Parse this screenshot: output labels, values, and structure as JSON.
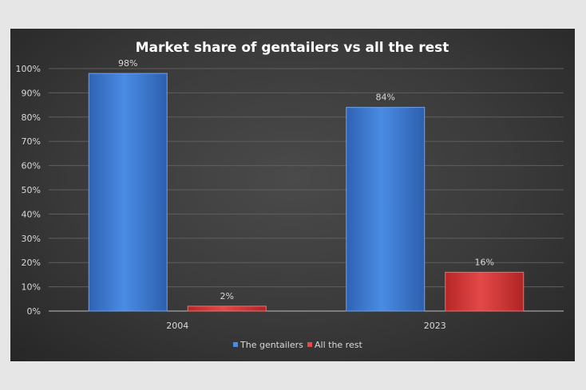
{
  "chart_data": {
    "type": "bar",
    "title": "Market share of gentailers vs all the rest",
    "categories": [
      "2004",
      "2023"
    ],
    "series": [
      {
        "name": "The gentailers",
        "values": [
          98,
          84
        ],
        "labels": [
          "98%",
          "84%"
        ],
        "color": "#3f7fd6"
      },
      {
        "name": "All the rest",
        "values": [
          2,
          16
        ],
        "labels": [
          "2%",
          "16%"
        ],
        "color": "#d83a3a"
      }
    ],
    "ylim": [
      0,
      100
    ],
    "yticks": [
      {
        "value": 0,
        "label": "0%"
      },
      {
        "value": 10,
        "label": "10%"
      },
      {
        "value": 20,
        "label": "20%"
      },
      {
        "value": 30,
        "label": "30%"
      },
      {
        "value": 40,
        "label": "40%"
      },
      {
        "value": 50,
        "label": "50%"
      },
      {
        "value": 60,
        "label": "60%"
      },
      {
        "value": 70,
        "label": "70%"
      },
      {
        "value": 80,
        "label": "80%"
      },
      {
        "value": 90,
        "label": "90%"
      },
      {
        "value": 100,
        "label": "100%"
      }
    ],
    "grid": true,
    "legend_position": "bottom"
  }
}
